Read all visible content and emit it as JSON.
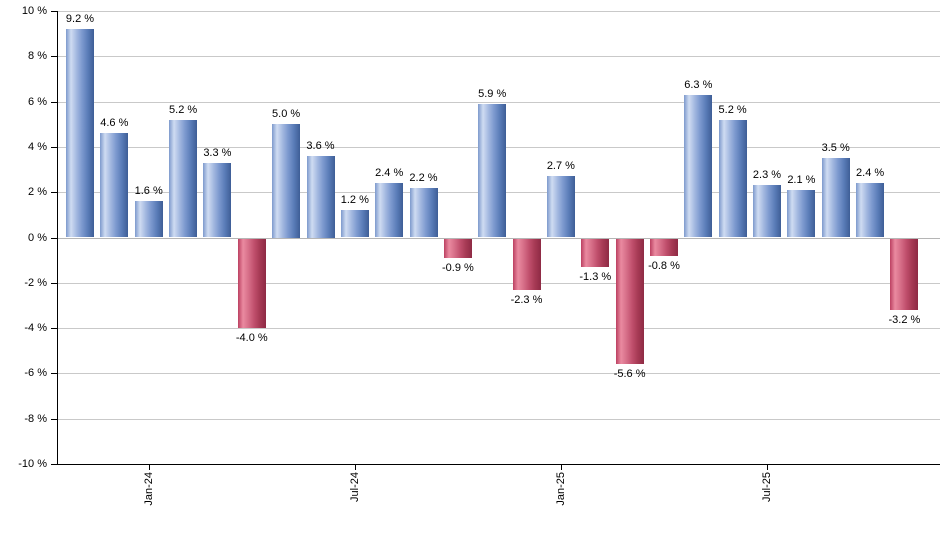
{
  "chart_data": {
    "type": "bar",
    "title": "",
    "xlabel": "",
    "ylabel": "",
    "ylim": [
      -10,
      10
    ],
    "grid": true,
    "legend": null,
    "values": [
      9.2,
      4.6,
      1.6,
      5.2,
      3.3,
      -4.0,
      5.0,
      3.6,
      1.2,
      2.4,
      2.2,
      -0.9,
      5.9,
      -2.3,
      2.7,
      -1.3,
      -5.6,
      -0.8,
      6.3,
      5.2,
      2.3,
      2.1,
      3.5,
      2.4,
      -3.2
    ],
    "value_label_suffix": " %",
    "y_ticks": [
      {
        "value": 10,
        "label": "10 %"
      },
      {
        "value": 8,
        "label": "8 %"
      },
      {
        "value": 6,
        "label": "6 %"
      },
      {
        "value": 4,
        "label": "4 %"
      },
      {
        "value": 2,
        "label": "2 %"
      },
      {
        "value": 0,
        "label": "0 %"
      },
      {
        "value": -2,
        "label": "-2 %"
      },
      {
        "value": -4,
        "label": "-4 %"
      },
      {
        "value": -6,
        "label": "-6 %"
      },
      {
        "value": -8,
        "label": "-8 %"
      },
      {
        "value": -10,
        "label": "-10 %"
      }
    ],
    "x_ticks": [
      {
        "label": "Jan-24",
        "bar_index": 2
      },
      {
        "label": "Jul-24",
        "bar_index": 8
      },
      {
        "label": "Jan-25",
        "bar_index": 14
      },
      {
        "label": "Jul-25",
        "bar_index": 20
      }
    ],
    "colors": {
      "positive_gradient": [
        "#7d99cc",
        "#cfdcf2",
        "#a3b8e0",
        "#7b98ce",
        "#5a7cb8",
        "#3e5e96"
      ],
      "negative_gradient": [
        "#bb4061",
        "#ea8aa0",
        "#d66e88",
        "#c04f6c",
        "#a63a55",
        "#8e2a44"
      ],
      "gridline": "#c9c9c9",
      "zero_line": "#b5b5b5",
      "axis": "#000000",
      "text": "#000000",
      "background": "#ffffff"
    }
  }
}
